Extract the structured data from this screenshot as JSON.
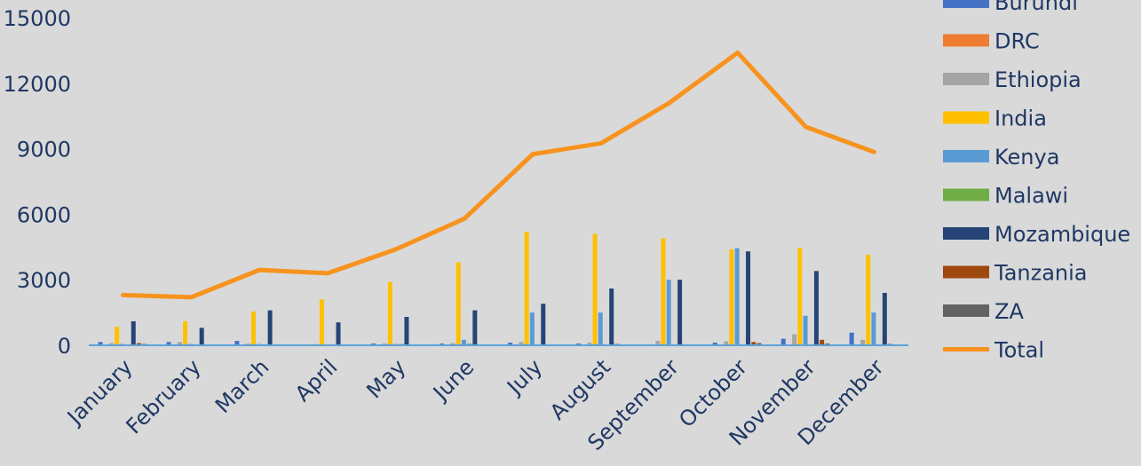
{
  "chart_data": {
    "type": "bar",
    "title": "",
    "xlabel": "",
    "ylabel": "",
    "ylim": [
      0,
      15000
    ],
    "yticks": [
      0,
      3000,
      6000,
      9000,
      12000,
      15000
    ],
    "grid": false,
    "legend_position": "right",
    "categories": [
      "January",
      "February",
      "March",
      "April",
      "May",
      "June",
      "July",
      "August",
      "September",
      "October",
      "November",
      "December"
    ],
    "series": [
      {
        "name": "Burundi",
        "type": "bar",
        "color": "#4472c4",
        "values": [
          150,
          150,
          200,
          20,
          80,
          80,
          120,
          80,
          20,
          120,
          300,
          580
        ]
      },
      {
        "name": "DRC",
        "type": "bar",
        "color": "#ed7d31",
        "values": [
          20,
          20,
          20,
          10,
          20,
          20,
          20,
          20,
          20,
          20,
          20,
          20
        ]
      },
      {
        "name": "Ethiopia",
        "type": "bar",
        "color": "#a5a5a5",
        "values": [
          100,
          150,
          80,
          60,
          80,
          100,
          150,
          120,
          200,
          180,
          500,
          250
        ]
      },
      {
        "name": "India",
        "type": "bar",
        "color": "#ffc000",
        "values": [
          850,
          1100,
          1550,
          2100,
          2900,
          3800,
          5200,
          5100,
          4900,
          4400,
          4450,
          4150
        ]
      },
      {
        "name": "Kenya",
        "type": "bar",
        "color": "#5b9bd5",
        "values": [
          60,
          60,
          60,
          40,
          60,
          250,
          1500,
          1500,
          3000,
          4450,
          1350,
          1500
        ]
      },
      {
        "name": "Malawi",
        "type": "bar",
        "color": "#70ad47",
        "values": [
          30,
          20,
          20,
          20,
          60,
          80,
          40,
          40,
          40,
          40,
          40,
          40
        ]
      },
      {
        "name": "Mozambique",
        "type": "bar",
        "color": "#264478",
        "values": [
          1100,
          800,
          1600,
          1050,
          1300,
          1600,
          1900,
          2600,
          3000,
          4300,
          3400,
          2400
        ]
      },
      {
        "name": "Tanzania",
        "type": "bar",
        "color": "#9e480e",
        "values": [
          100,
          10,
          10,
          10,
          20,
          20,
          20,
          60,
          40,
          150,
          250,
          60
        ]
      },
      {
        "name": "ZA",
        "type": "bar",
        "color": "#636363",
        "values": [
          60,
          10,
          10,
          10,
          20,
          20,
          20,
          20,
          40,
          100,
          80,
          40
        ]
      },
      {
        "name": "Total",
        "type": "line",
        "color": "#f7931e",
        "values": [
          2300,
          2200,
          3450,
          3300,
          4400,
          5800,
          8750,
          9250,
          11100,
          13400,
          10000,
          8850
        ]
      }
    ]
  }
}
